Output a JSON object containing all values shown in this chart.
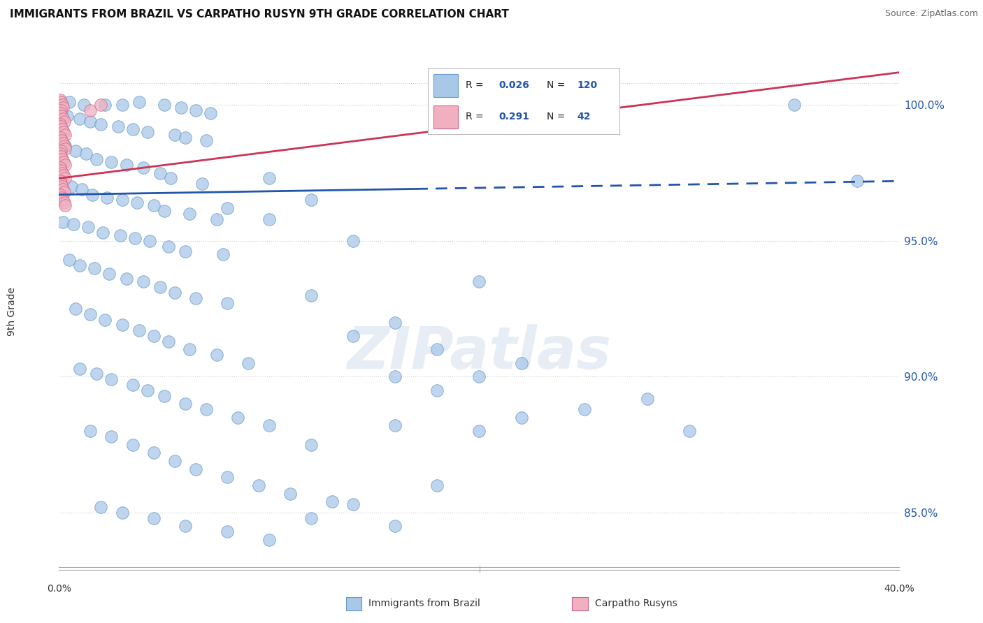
{
  "title": "IMMIGRANTS FROM BRAZIL VS CARPATHO RUSYN 9TH GRADE CORRELATION CHART",
  "source": "Source: ZipAtlas.com",
  "ylabel": "9th Grade",
  "xlim": [
    0.0,
    40.0
  ],
  "ylim": [
    83.0,
    101.8
  ],
  "yticks": [
    85.0,
    90.0,
    95.0,
    100.0
  ],
  "ytick_labels": [
    "85.0%",
    "90.0%",
    "95.0%",
    "100.0%"
  ],
  "blue_R": 0.026,
  "blue_N": 120,
  "pink_R": 0.291,
  "pink_N": 42,
  "blue_color": "#a8c8e8",
  "blue_edge": "#6699cc",
  "pink_color": "#f0b0c0",
  "pink_edge": "#cc6688",
  "trend_blue": "#2255aa",
  "trend_pink": "#cc3355",
  "legend_blue": "Immigrants from Brazil",
  "legend_pink": "Carpatho Rusyns",
  "blue_scatter": [
    [
      0.5,
      100.1
    ],
    [
      1.2,
      100.0
    ],
    [
      2.2,
      100.0
    ],
    [
      3.0,
      100.0
    ],
    [
      3.8,
      100.1
    ],
    [
      5.0,
      100.0
    ],
    [
      5.8,
      99.9
    ],
    [
      6.5,
      99.8
    ],
    [
      7.2,
      99.7
    ],
    [
      0.4,
      99.6
    ],
    [
      1.0,
      99.5
    ],
    [
      1.5,
      99.4
    ],
    [
      2.0,
      99.3
    ],
    [
      2.8,
      99.2
    ],
    [
      3.5,
      99.1
    ],
    [
      4.2,
      99.0
    ],
    [
      5.5,
      98.9
    ],
    [
      6.0,
      98.8
    ],
    [
      7.0,
      98.7
    ],
    [
      0.3,
      98.5
    ],
    [
      0.8,
      98.3
    ],
    [
      1.3,
      98.2
    ],
    [
      1.8,
      98.0
    ],
    [
      2.5,
      97.9
    ],
    [
      3.2,
      97.8
    ],
    [
      4.0,
      97.7
    ],
    [
      4.8,
      97.5
    ],
    [
      5.3,
      97.3
    ],
    [
      6.8,
      97.1
    ],
    [
      0.6,
      97.0
    ],
    [
      1.1,
      96.9
    ],
    [
      1.6,
      96.7
    ],
    [
      2.3,
      96.6
    ],
    [
      3.0,
      96.5
    ],
    [
      3.7,
      96.4
    ],
    [
      4.5,
      96.3
    ],
    [
      5.0,
      96.1
    ],
    [
      6.2,
      96.0
    ],
    [
      7.5,
      95.8
    ],
    [
      0.2,
      95.7
    ],
    [
      0.7,
      95.6
    ],
    [
      1.4,
      95.5
    ],
    [
      2.1,
      95.3
    ],
    [
      2.9,
      95.2
    ],
    [
      3.6,
      95.1
    ],
    [
      4.3,
      95.0
    ],
    [
      5.2,
      94.8
    ],
    [
      6.0,
      94.6
    ],
    [
      7.8,
      94.5
    ],
    [
      0.5,
      94.3
    ],
    [
      1.0,
      94.1
    ],
    [
      1.7,
      94.0
    ],
    [
      2.4,
      93.8
    ],
    [
      3.2,
      93.6
    ],
    [
      4.0,
      93.5
    ],
    [
      4.8,
      93.3
    ],
    [
      5.5,
      93.1
    ],
    [
      6.5,
      92.9
    ],
    [
      8.0,
      92.7
    ],
    [
      0.8,
      92.5
    ],
    [
      1.5,
      92.3
    ],
    [
      2.2,
      92.1
    ],
    [
      3.0,
      91.9
    ],
    [
      3.8,
      91.7
    ],
    [
      4.5,
      91.5
    ],
    [
      5.2,
      91.3
    ],
    [
      6.2,
      91.0
    ],
    [
      7.5,
      90.8
    ],
    [
      9.0,
      90.5
    ],
    [
      1.0,
      90.3
    ],
    [
      1.8,
      90.1
    ],
    [
      2.5,
      89.9
    ],
    [
      3.5,
      89.7
    ],
    [
      4.2,
      89.5
    ],
    [
      5.0,
      89.3
    ],
    [
      6.0,
      89.0
    ],
    [
      7.0,
      88.8
    ],
    [
      8.5,
      88.5
    ],
    [
      10.0,
      88.2
    ],
    [
      1.5,
      88.0
    ],
    [
      2.5,
      87.8
    ],
    [
      3.5,
      87.5
    ],
    [
      4.5,
      87.2
    ],
    [
      5.5,
      86.9
    ],
    [
      6.5,
      86.6
    ],
    [
      8.0,
      86.3
    ],
    [
      9.5,
      86.0
    ],
    [
      11.0,
      85.7
    ],
    [
      13.0,
      85.4
    ],
    [
      2.0,
      85.2
    ],
    [
      3.0,
      85.0
    ],
    [
      4.5,
      84.8
    ],
    [
      6.0,
      84.5
    ],
    [
      8.0,
      84.3
    ],
    [
      10.0,
      84.0
    ],
    [
      12.0,
      84.8
    ],
    [
      14.0,
      85.3
    ],
    [
      16.0,
      84.5
    ],
    [
      18.0,
      89.5
    ],
    [
      20.0,
      88.0
    ],
    [
      8.0,
      96.2
    ],
    [
      10.0,
      95.8
    ],
    [
      12.0,
      93.0
    ],
    [
      14.0,
      91.5
    ],
    [
      16.0,
      90.0
    ],
    [
      12.0,
      87.5
    ],
    [
      16.0,
      88.2
    ],
    [
      20.0,
      90.0
    ],
    [
      22.0,
      88.5
    ],
    [
      18.0,
      86.0
    ],
    [
      35.0,
      100.0
    ],
    [
      38.0,
      97.2
    ],
    [
      25.0,
      88.8
    ],
    [
      22.0,
      90.5
    ],
    [
      28.0,
      89.2
    ],
    [
      30.0,
      88.0
    ],
    [
      10.0,
      97.3
    ],
    [
      12.0,
      96.5
    ],
    [
      14.0,
      95.0
    ],
    [
      20.0,
      93.5
    ],
    [
      16.0,
      92.0
    ],
    [
      18.0,
      91.0
    ]
  ],
  "pink_scatter": [
    [
      0.05,
      100.2
    ],
    [
      0.1,
      100.1
    ],
    [
      0.15,
      100.0
    ],
    [
      0.2,
      99.9
    ],
    [
      0.08,
      99.8
    ],
    [
      0.05,
      99.7
    ],
    [
      0.12,
      99.6
    ],
    [
      0.18,
      99.5
    ],
    [
      0.25,
      99.4
    ],
    [
      0.06,
      99.3
    ],
    [
      0.1,
      99.2
    ],
    [
      0.15,
      99.1
    ],
    [
      0.22,
      99.0
    ],
    [
      0.28,
      98.9
    ],
    [
      0.07,
      98.8
    ],
    [
      0.12,
      98.7
    ],
    [
      0.18,
      98.6
    ],
    [
      0.25,
      98.5
    ],
    [
      0.3,
      98.4
    ],
    [
      0.08,
      98.3
    ],
    [
      0.05,
      98.2
    ],
    [
      0.1,
      98.1
    ],
    [
      0.16,
      98.0
    ],
    [
      0.22,
      97.9
    ],
    [
      0.28,
      97.8
    ],
    [
      0.06,
      97.7
    ],
    [
      0.1,
      97.6
    ],
    [
      0.16,
      97.5
    ],
    [
      0.22,
      97.4
    ],
    [
      0.28,
      97.3
    ],
    [
      0.05,
      97.2
    ],
    [
      0.1,
      97.1
    ],
    [
      0.15,
      97.0
    ],
    [
      0.2,
      96.9
    ],
    [
      0.25,
      96.8
    ],
    [
      0.07,
      96.7
    ],
    [
      0.12,
      96.6
    ],
    [
      0.18,
      96.5
    ],
    [
      0.25,
      96.4
    ],
    [
      0.3,
      96.3
    ],
    [
      1.5,
      99.8
    ],
    [
      2.0,
      100.0
    ]
  ],
  "blue_line": {
    "x0": 0.0,
    "y0": 96.7,
    "x1": 40.0,
    "y1": 97.2,
    "dash_start_x": 17.0
  },
  "pink_line": {
    "x0": 0.0,
    "y0": 97.3,
    "x1": 40.0,
    "y1": 101.2
  }
}
